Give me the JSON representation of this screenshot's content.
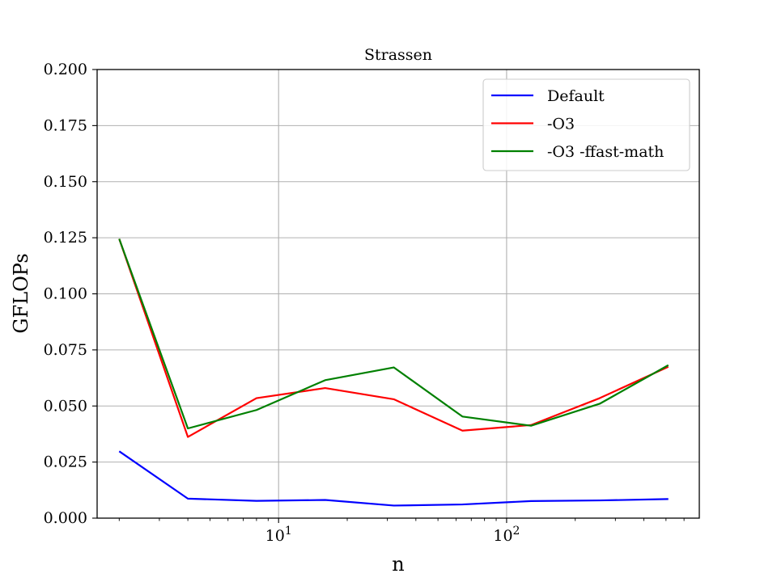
{
  "chart_data": {
    "type": "line",
    "title": "Strassen",
    "xlabel": "n",
    "ylabel": "GFLOPs",
    "xscale": "log",
    "xlim": [
      1.6,
      700
    ],
    "ylim": [
      0,
      0.2
    ],
    "x": [
      2,
      4,
      8,
      16,
      32,
      64,
      128,
      256,
      512
    ],
    "yticks": [
      0.0,
      0.025,
      0.05,
      0.075,
      0.1,
      0.125,
      0.15,
      0.175,
      0.2
    ],
    "ytick_labels": [
      "0.000",
      "0.025",
      "0.050",
      "0.075",
      "0.100",
      "0.125",
      "0.150",
      "0.175",
      "0.200"
    ],
    "xticks_major": [
      {
        "value": 10,
        "base": "10",
        "exp": "1"
      },
      {
        "value": 100,
        "base": "10",
        "exp": "2"
      }
    ],
    "xticks_minor": [
      2,
      3,
      4,
      5,
      6,
      7,
      8,
      9,
      20,
      30,
      40,
      50,
      60,
      70,
      80,
      90,
      200,
      300,
      400,
      500,
      600
    ],
    "grid": true,
    "legend_position": "upper right",
    "series": [
      {
        "name": "Default",
        "color": "#0000ff",
        "values": [
          0.0298,
          0.0087,
          0.0077,
          0.0081,
          0.0056,
          0.0061,
          0.0076,
          0.0079,
          0.0085
        ]
      },
      {
        "name": "-O3",
        "color": "#ff0000",
        "values": [
          0.1245,
          0.0362,
          0.0535,
          0.058,
          0.053,
          0.039,
          0.0415,
          0.0535,
          0.0675
        ]
      },
      {
        "name": "-O3 -ffast-math",
        "color": "#008000",
        "values": [
          0.1245,
          0.04,
          0.0482,
          0.0615,
          0.0672,
          0.0453,
          0.0412,
          0.051,
          0.0682
        ]
      }
    ]
  }
}
